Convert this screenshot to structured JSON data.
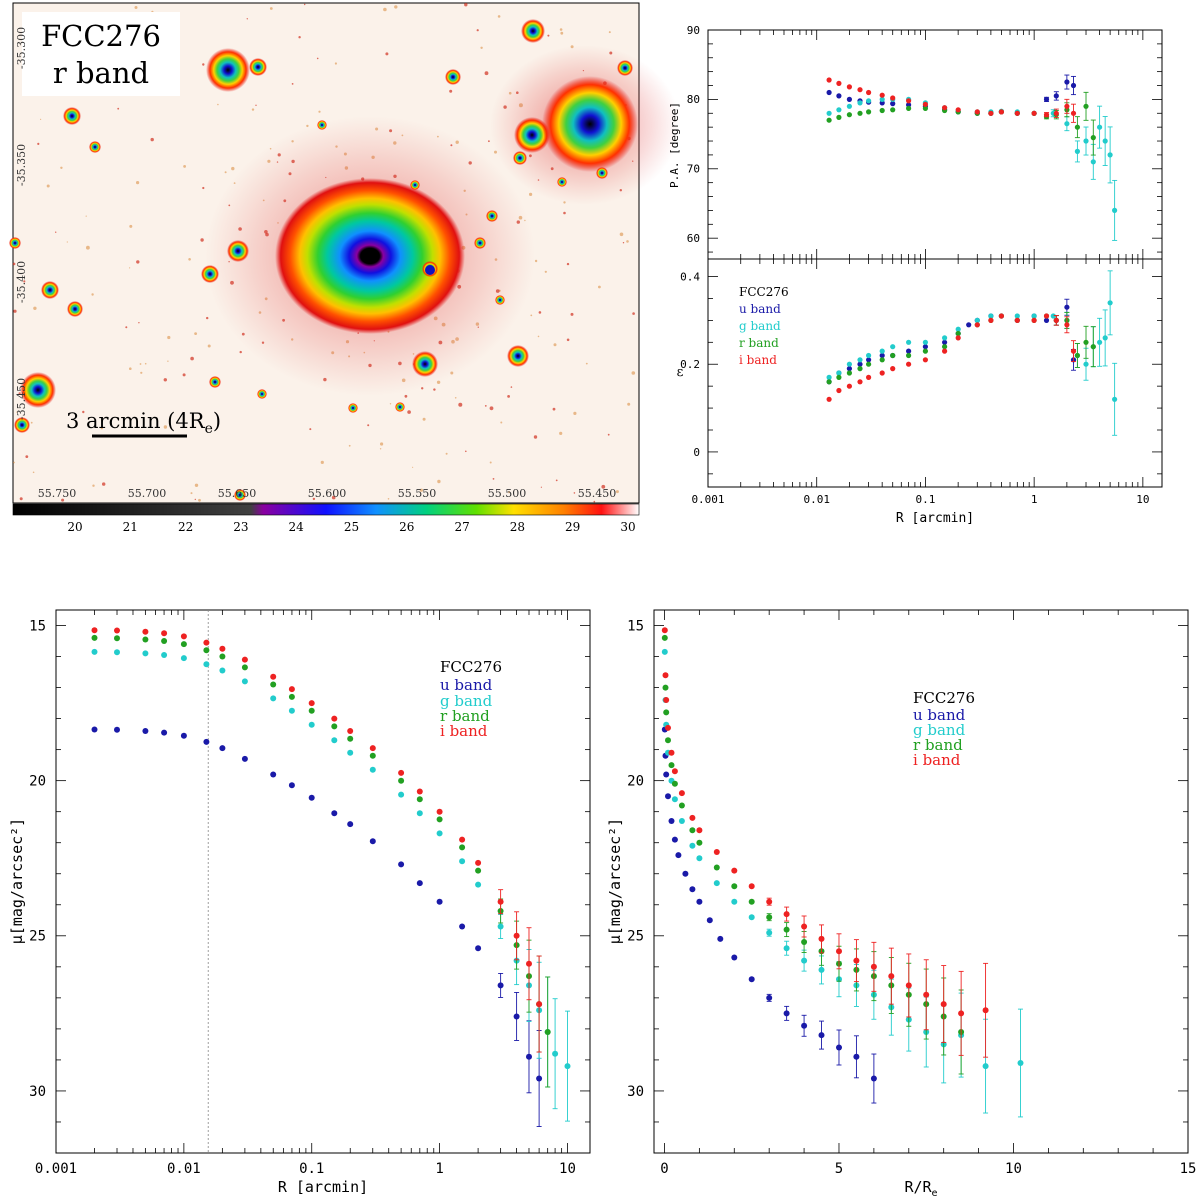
{
  "image_panel": {
    "title_line1": "FCC276",
    "title_line2": "r band",
    "scale_label": "3 arcmin (4R",
    "scale_label_sub": "e",
    "scale_label_end": ")",
    "ra_ticks": [
      "55.750",
      "55.700",
      "55.650",
      "55.600",
      "55.550",
      "55.500",
      "55.450"
    ],
    "dec_ticks": [
      "-35.300",
      "-35.350",
      "-35.400",
      "-35.450"
    ],
    "colorbar_ticks": [
      "20",
      "21",
      "22",
      "23",
      "24",
      "25",
      "26",
      "27",
      "28",
      "29",
      "30"
    ]
  },
  "colors": {
    "u": "#1a1aa8",
    "g": "#22cccc",
    "r": "#22a022",
    "i": "#ee2222"
  },
  "legend": {
    "title": "FCC276",
    "u": "u band",
    "g": "g band",
    "r": "r band",
    "i": "i band"
  },
  "chart_data": [
    {
      "type": "scatter",
      "id": "pa",
      "title": "",
      "xlabel": "",
      "ylabel": "P.A. [degree]",
      "xscale": "log",
      "xlim": [
        0.001,
        15
      ],
      "ylim": [
        57,
        90
      ],
      "yticks": [
        "60",
        "70",
        "80",
        "90"
      ],
      "series": [
        {
          "name": "u band",
          "x": [
            0.013,
            0.016,
            0.02,
            0.025,
            0.03,
            0.04,
            0.05,
            0.07,
            0.1,
            0.15,
            0.2,
            0.3,
            0.4,
            0.5,
            0.7,
            1.0,
            1.3,
            1.6,
            2.0,
            2.3
          ],
          "y": [
            81,
            80.5,
            80,
            79.8,
            79.6,
            79.5,
            79.4,
            79.2,
            79,
            78.5,
            78.2,
            78,
            78,
            78.2,
            78,
            78,
            80,
            80.5,
            82.5,
            82
          ]
        },
        {
          "name": "g band",
          "x": [
            0.013,
            0.016,
            0.02,
            0.025,
            0.03,
            0.04,
            0.05,
            0.07,
            0.1,
            0.15,
            0.2,
            0.3,
            0.4,
            0.5,
            0.7,
            1.0,
            1.5,
            2.0,
            2.5,
            3.0,
            3.5,
            4.0,
            4.5,
            5.0,
            5.5
          ],
          "y": [
            78,
            78.5,
            79,
            79.5,
            79.8,
            80,
            80,
            80,
            79.5,
            78.8,
            78.3,
            78.2,
            78.2,
            78.3,
            78.2,
            78,
            78,
            76.5,
            72.5,
            74,
            71,
            76,
            74,
            72,
            64
          ]
        },
        {
          "name": "r band",
          "x": [
            0.013,
            0.016,
            0.02,
            0.025,
            0.03,
            0.04,
            0.05,
            0.07,
            0.1,
            0.15,
            0.2,
            0.3,
            0.4,
            0.5,
            0.7,
            1.0,
            1.3,
            1.6,
            2.0,
            2.5,
            3.0,
            3.5
          ],
          "y": [
            77,
            77.4,
            77.8,
            78,
            78.2,
            78.4,
            78.5,
            78.7,
            78.7,
            78.4,
            78.2,
            78,
            78,
            78.2,
            78,
            78,
            77.5,
            77.8,
            78.5,
            76,
            79,
            74.5
          ]
        },
        {
          "name": "i band",
          "x": [
            0.013,
            0.016,
            0.02,
            0.025,
            0.03,
            0.04,
            0.05,
            0.07,
            0.1,
            0.15,
            0.2,
            0.3,
            0.4,
            0.5,
            0.7,
            1.0,
            1.3,
            1.6,
            2.0,
            2.3
          ],
          "y": [
            82.8,
            82.3,
            81.8,
            81.4,
            81,
            80.6,
            80.2,
            79.8,
            79.3,
            78.8,
            78.5,
            78.2,
            78,
            78.2,
            78,
            78,
            77.8,
            78,
            79,
            78
          ]
        }
      ]
    },
    {
      "type": "scatter",
      "id": "ellipticity",
      "title": "",
      "xlabel": "R [arcmin]",
      "ylabel": "ε",
      "xscale": "log",
      "xlim": [
        0.001,
        15
      ],
      "ylim": [
        -0.08,
        0.44
      ],
      "xticks": [
        "0.001",
        "0.01",
        "0.1",
        "1",
        "10"
      ],
      "yticks": [
        "0",
        "0.2",
        "0.4"
      ],
      "series": [
        {
          "name": "u band",
          "x": [
            0.013,
            0.016,
            0.02,
            0.025,
            0.03,
            0.04,
            0.05,
            0.07,
            0.1,
            0.15,
            0.2,
            0.25,
            0.3,
            0.4,
            0.5,
            0.7,
            1.0,
            1.3,
            1.6,
            2.0,
            2.3
          ],
          "y": [
            0.16,
            0.18,
            0.19,
            0.2,
            0.21,
            0.22,
            0.22,
            0.23,
            0.24,
            0.25,
            0.27,
            0.29,
            0.3,
            0.31,
            0.31,
            0.3,
            0.31,
            0.3,
            0.3,
            0.33,
            0.21
          ]
        },
        {
          "name": "g band",
          "x": [
            0.013,
            0.016,
            0.02,
            0.025,
            0.03,
            0.04,
            0.05,
            0.07,
            0.1,
            0.15,
            0.2,
            0.3,
            0.4,
            0.5,
            0.7,
            1.0,
            1.5,
            2.0,
            2.5,
            3.0,
            3.5,
            4.0,
            4.5,
            5.0,
            5.5
          ],
          "y": [
            0.17,
            0.18,
            0.2,
            0.21,
            0.22,
            0.23,
            0.24,
            0.25,
            0.25,
            0.26,
            0.28,
            0.3,
            0.31,
            0.31,
            0.31,
            0.31,
            0.31,
            0.3,
            0.22,
            0.2,
            0.24,
            0.25,
            0.26,
            0.34,
            0.12
          ]
        },
        {
          "name": "r band",
          "x": [
            0.013,
            0.016,
            0.02,
            0.025,
            0.03,
            0.04,
            0.05,
            0.07,
            0.1,
            0.15,
            0.2,
            0.3,
            0.4,
            0.5,
            0.7,
            1.0,
            1.3,
            1.6,
            2.0,
            2.5,
            3.0,
            3.5
          ],
          "y": [
            0.16,
            0.17,
            0.18,
            0.19,
            0.2,
            0.21,
            0.22,
            0.22,
            0.23,
            0.24,
            0.27,
            0.29,
            0.3,
            0.31,
            0.3,
            0.3,
            0.31,
            0.3,
            0.3,
            0.22,
            0.25,
            0.24
          ]
        },
        {
          "name": "i band",
          "x": [
            0.013,
            0.016,
            0.02,
            0.025,
            0.03,
            0.04,
            0.05,
            0.07,
            0.1,
            0.15,
            0.2,
            0.3,
            0.4,
            0.5,
            0.7,
            1.0,
            1.3,
            1.6,
            2.0,
            2.3
          ],
          "y": [
            0.12,
            0.14,
            0.15,
            0.16,
            0.17,
            0.18,
            0.19,
            0.2,
            0.21,
            0.23,
            0.26,
            0.29,
            0.3,
            0.31,
            0.3,
            0.3,
            0.31,
            0.3,
            0.29,
            0.23
          ]
        }
      ]
    },
    {
      "type": "scatter",
      "id": "sb_log",
      "title": "",
      "xlabel": "R [arcmin]",
      "ylabel": "μ[mag/arcsec²]",
      "xscale": "log",
      "xlim": [
        0.001,
        15
      ],
      "ylim": [
        32,
        14.5
      ],
      "reference_line_x": 0.0155,
      "xticks": [
        "0.001",
        "0.01",
        "0.1",
        "1",
        "10"
      ],
      "yticks": [
        "15",
        "20",
        "25",
        "30"
      ],
      "series": [
        {
          "name": "u band",
          "x": [
            0.002,
            0.003,
            0.005,
            0.007,
            0.01,
            0.015,
            0.02,
            0.03,
            0.05,
            0.07,
            0.1,
            0.15,
            0.2,
            0.3,
            0.5,
            0.7,
            1,
            1.5,
            2,
            3,
            4,
            5,
            6
          ],
          "y": [
            18.35,
            18.36,
            18.4,
            18.45,
            18.55,
            18.75,
            18.95,
            19.3,
            19.8,
            20.15,
            20.55,
            21.05,
            21.4,
            21.95,
            22.7,
            23.3,
            23.9,
            24.7,
            25.4,
            26.6,
            27.6,
            28.9,
            29.6
          ]
        },
        {
          "name": "g band",
          "x": [
            0.002,
            0.003,
            0.005,
            0.007,
            0.01,
            0.015,
            0.02,
            0.03,
            0.05,
            0.07,
            0.1,
            0.15,
            0.2,
            0.3,
            0.5,
            0.7,
            1,
            1.5,
            2,
            3,
            4,
            5,
            6,
            7,
            8,
            10
          ],
          "y": [
            15.85,
            15.86,
            15.9,
            15.95,
            16.05,
            16.25,
            16.45,
            16.8,
            17.35,
            17.75,
            18.2,
            18.7,
            19.1,
            19.65,
            20.45,
            21.05,
            21.7,
            22.6,
            23.35,
            24.7,
            25.8,
            26.6,
            27.4,
            28.1,
            28.8,
            29.2
          ]
        },
        {
          "name": "r band",
          "x": [
            0.002,
            0.003,
            0.005,
            0.007,
            0.01,
            0.015,
            0.02,
            0.03,
            0.05,
            0.07,
            0.1,
            0.15,
            0.2,
            0.3,
            0.5,
            0.7,
            1,
            1.5,
            2,
            3,
            4,
            5,
            6,
            7
          ],
          "y": [
            15.4,
            15.41,
            15.45,
            15.5,
            15.6,
            15.8,
            16,
            16.35,
            16.9,
            17.3,
            17.75,
            18.25,
            18.65,
            19.2,
            20,
            20.6,
            21.25,
            22.15,
            22.9,
            24.2,
            25.3,
            26.3,
            27.2,
            28.1
          ]
        },
        {
          "name": "i band",
          "x": [
            0.002,
            0.003,
            0.005,
            0.007,
            0.01,
            0.015,
            0.02,
            0.03,
            0.05,
            0.07,
            0.1,
            0.15,
            0.2,
            0.3,
            0.5,
            0.7,
            1,
            1.5,
            2,
            3,
            4,
            5,
            6
          ],
          "y": [
            15.15,
            15.16,
            15.2,
            15.25,
            15.35,
            15.55,
            15.75,
            16.1,
            16.65,
            17.05,
            17.5,
            18,
            18.4,
            18.95,
            19.75,
            20.35,
            21,
            21.9,
            22.65,
            23.9,
            25,
            25.9,
            27.2
          ]
        }
      ]
    },
    {
      "type": "scatter",
      "id": "sb_lin",
      "title": "",
      "xlabel": "R/R",
      "xlabel_sub": "e",
      "ylabel": "μ[mag/arcsec²]",
      "xscale": "linear",
      "xlim": [
        -0.3,
        15
      ],
      "ylim": [
        32,
        14.5
      ],
      "xticks": [
        "0",
        "5",
        "10",
        "15"
      ],
      "yticks": [
        "15",
        "20",
        "25",
        "30"
      ],
      "series": [
        {
          "name": "u band",
          "x": [
            0.01,
            0.03,
            0.05,
            0.1,
            0.2,
            0.3,
            0.4,
            0.6,
            0.8,
            1.0,
            1.3,
            1.6,
            2.0,
            2.5,
            3.0,
            3.5,
            4.0,
            4.5,
            5.0,
            5.5,
            6.0
          ],
          "y": [
            18.35,
            19.2,
            19.8,
            20.5,
            21.3,
            21.9,
            22.4,
            23.0,
            23.5,
            23.9,
            24.5,
            25.1,
            25.7,
            26.4,
            27.0,
            27.5,
            27.9,
            28.2,
            28.6,
            28.9,
            29.6
          ]
        },
        {
          "name": "g band",
          "x": [
            0.01,
            0.03,
            0.05,
            0.1,
            0.2,
            0.3,
            0.5,
            0.8,
            1.0,
            1.5,
            2.0,
            2.5,
            3.0,
            3.5,
            4.0,
            4.5,
            5.0,
            5.5,
            6.0,
            6.5,
            7.0,
            7.5,
            8.0,
            8.5,
            9.2,
            10.2
          ],
          "y": [
            15.85,
            17.4,
            18.2,
            19.1,
            20.0,
            20.6,
            21.3,
            22.1,
            22.5,
            23.3,
            23.9,
            24.4,
            24.9,
            25.4,
            25.8,
            26.1,
            26.4,
            26.6,
            26.9,
            27.3,
            27.7,
            28.1,
            28.5,
            28.2,
            29.2,
            29.1
          ]
        },
        {
          "name": "r band",
          "x": [
            0.01,
            0.03,
            0.05,
            0.1,
            0.2,
            0.3,
            0.5,
            0.8,
            1.0,
            1.5,
            2.0,
            2.5,
            3.0,
            3.5,
            4.0,
            4.5,
            5.0,
            5.5,
            6.0,
            6.5,
            7.0,
            7.5,
            8.0,
            8.5
          ],
          "y": [
            15.4,
            17.0,
            17.8,
            18.7,
            19.5,
            20.1,
            20.8,
            21.6,
            22.0,
            22.8,
            23.4,
            23.9,
            24.4,
            24.8,
            25.2,
            25.5,
            25.9,
            26.1,
            26.3,
            26.6,
            26.9,
            27.2,
            27.6,
            28.1
          ]
        },
        {
          "name": "i band",
          "x": [
            0.01,
            0.03,
            0.05,
            0.1,
            0.2,
            0.3,
            0.5,
            0.8,
            1.0,
            1.5,
            2.0,
            2.5,
            3.0,
            3.5,
            4.0,
            4.5,
            5.0,
            5.5,
            6.0,
            6.5,
            7.0,
            7.5,
            8.0,
            8.5,
            9.2
          ],
          "y": [
            15.15,
            16.6,
            17.4,
            18.3,
            19.1,
            19.7,
            20.4,
            21.2,
            21.6,
            22.3,
            22.9,
            23.4,
            23.9,
            24.3,
            24.7,
            25.1,
            25.5,
            25.8,
            26.0,
            26.3,
            26.6,
            26.9,
            27.2,
            27.5,
            27.4
          ]
        }
      ]
    }
  ]
}
